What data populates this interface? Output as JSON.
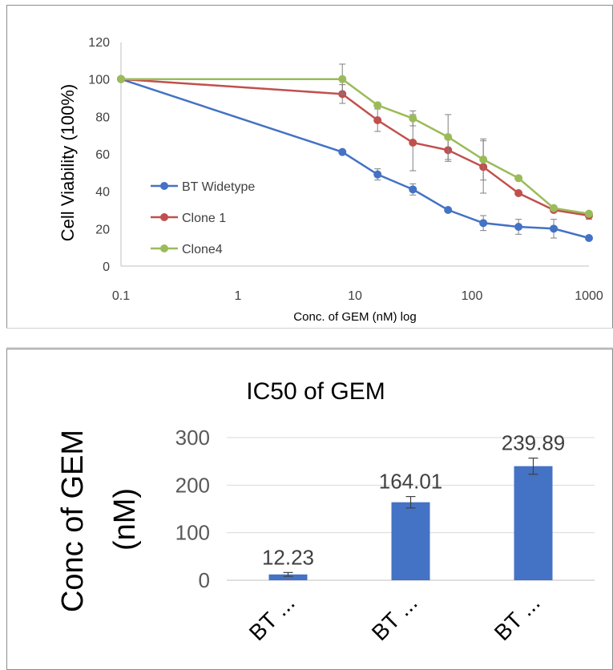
{
  "chart_data": [
    {
      "type": "line",
      "title": "",
      "xlabel": "Conc. of GEM (nM) log",
      "ylabel": "Cell Viability (100%)",
      "xscale": "log",
      "xlim": [
        0.1,
        1000
      ],
      "ylim": [
        0,
        120
      ],
      "xticks": [
        0.1,
        1,
        10,
        100,
        1000
      ],
      "xtick_labels": [
        "0.1",
        "1",
        "10",
        "100",
        "1000"
      ],
      "yticks": [
        0,
        20,
        40,
        60,
        80,
        100,
        120
      ],
      "ytick_labels": [
        "0",
        "20",
        "40",
        "60",
        "80",
        "100",
        "120"
      ],
      "grid": false,
      "legend_position": "left-middle",
      "x": [
        0.1,
        7.8,
        15.6,
        31.25,
        62.5,
        125,
        250,
        500,
        1000
      ],
      "series": [
        {
          "name": "BT Widetype",
          "color": "#4472c4",
          "values": [
            100,
            61,
            49,
            41,
            30,
            23,
            21,
            20,
            15
          ],
          "errors": [
            0,
            0,
            3,
            3,
            0,
            4,
            4,
            5,
            0
          ]
        },
        {
          "name": "Clone 1",
          "color": "#c0504d",
          "values": [
            100,
            92,
            78,
            66,
            62,
            53,
            39,
            30,
            27
          ],
          "errors": [
            0,
            5,
            6,
            15,
            6,
            14,
            0,
            0,
            2
          ]
        },
        {
          "name": "Clone4",
          "color": "#9bbb59",
          "values": [
            100,
            100,
            86,
            79,
            69,
            57,
            47,
            31,
            28
          ],
          "errors": [
            0,
            8,
            0,
            4,
            12,
            11,
            0,
            0,
            0
          ]
        }
      ]
    },
    {
      "type": "bar",
      "title": "IC50 of GEM",
      "xlabel": "",
      "ylabel": "Conc of GEM (nM)",
      "ylabel_lines": [
        "Conc of GEM",
        "(nM)"
      ],
      "categories": [
        "BT ...",
        "BT ...",
        "BT ..."
      ],
      "values": [
        12.23,
        164.01,
        239.89
      ],
      "value_labels": [
        "12.23",
        "164.01",
        "239.89"
      ],
      "errors": [
        4,
        12,
        17
      ],
      "ylim": [
        0,
        300
      ],
      "yticks": [
        0,
        100,
        200,
        300
      ],
      "ytick_labels": [
        "0",
        "100",
        "200",
        "300"
      ],
      "grid": true,
      "color": "#4472c4"
    }
  ]
}
